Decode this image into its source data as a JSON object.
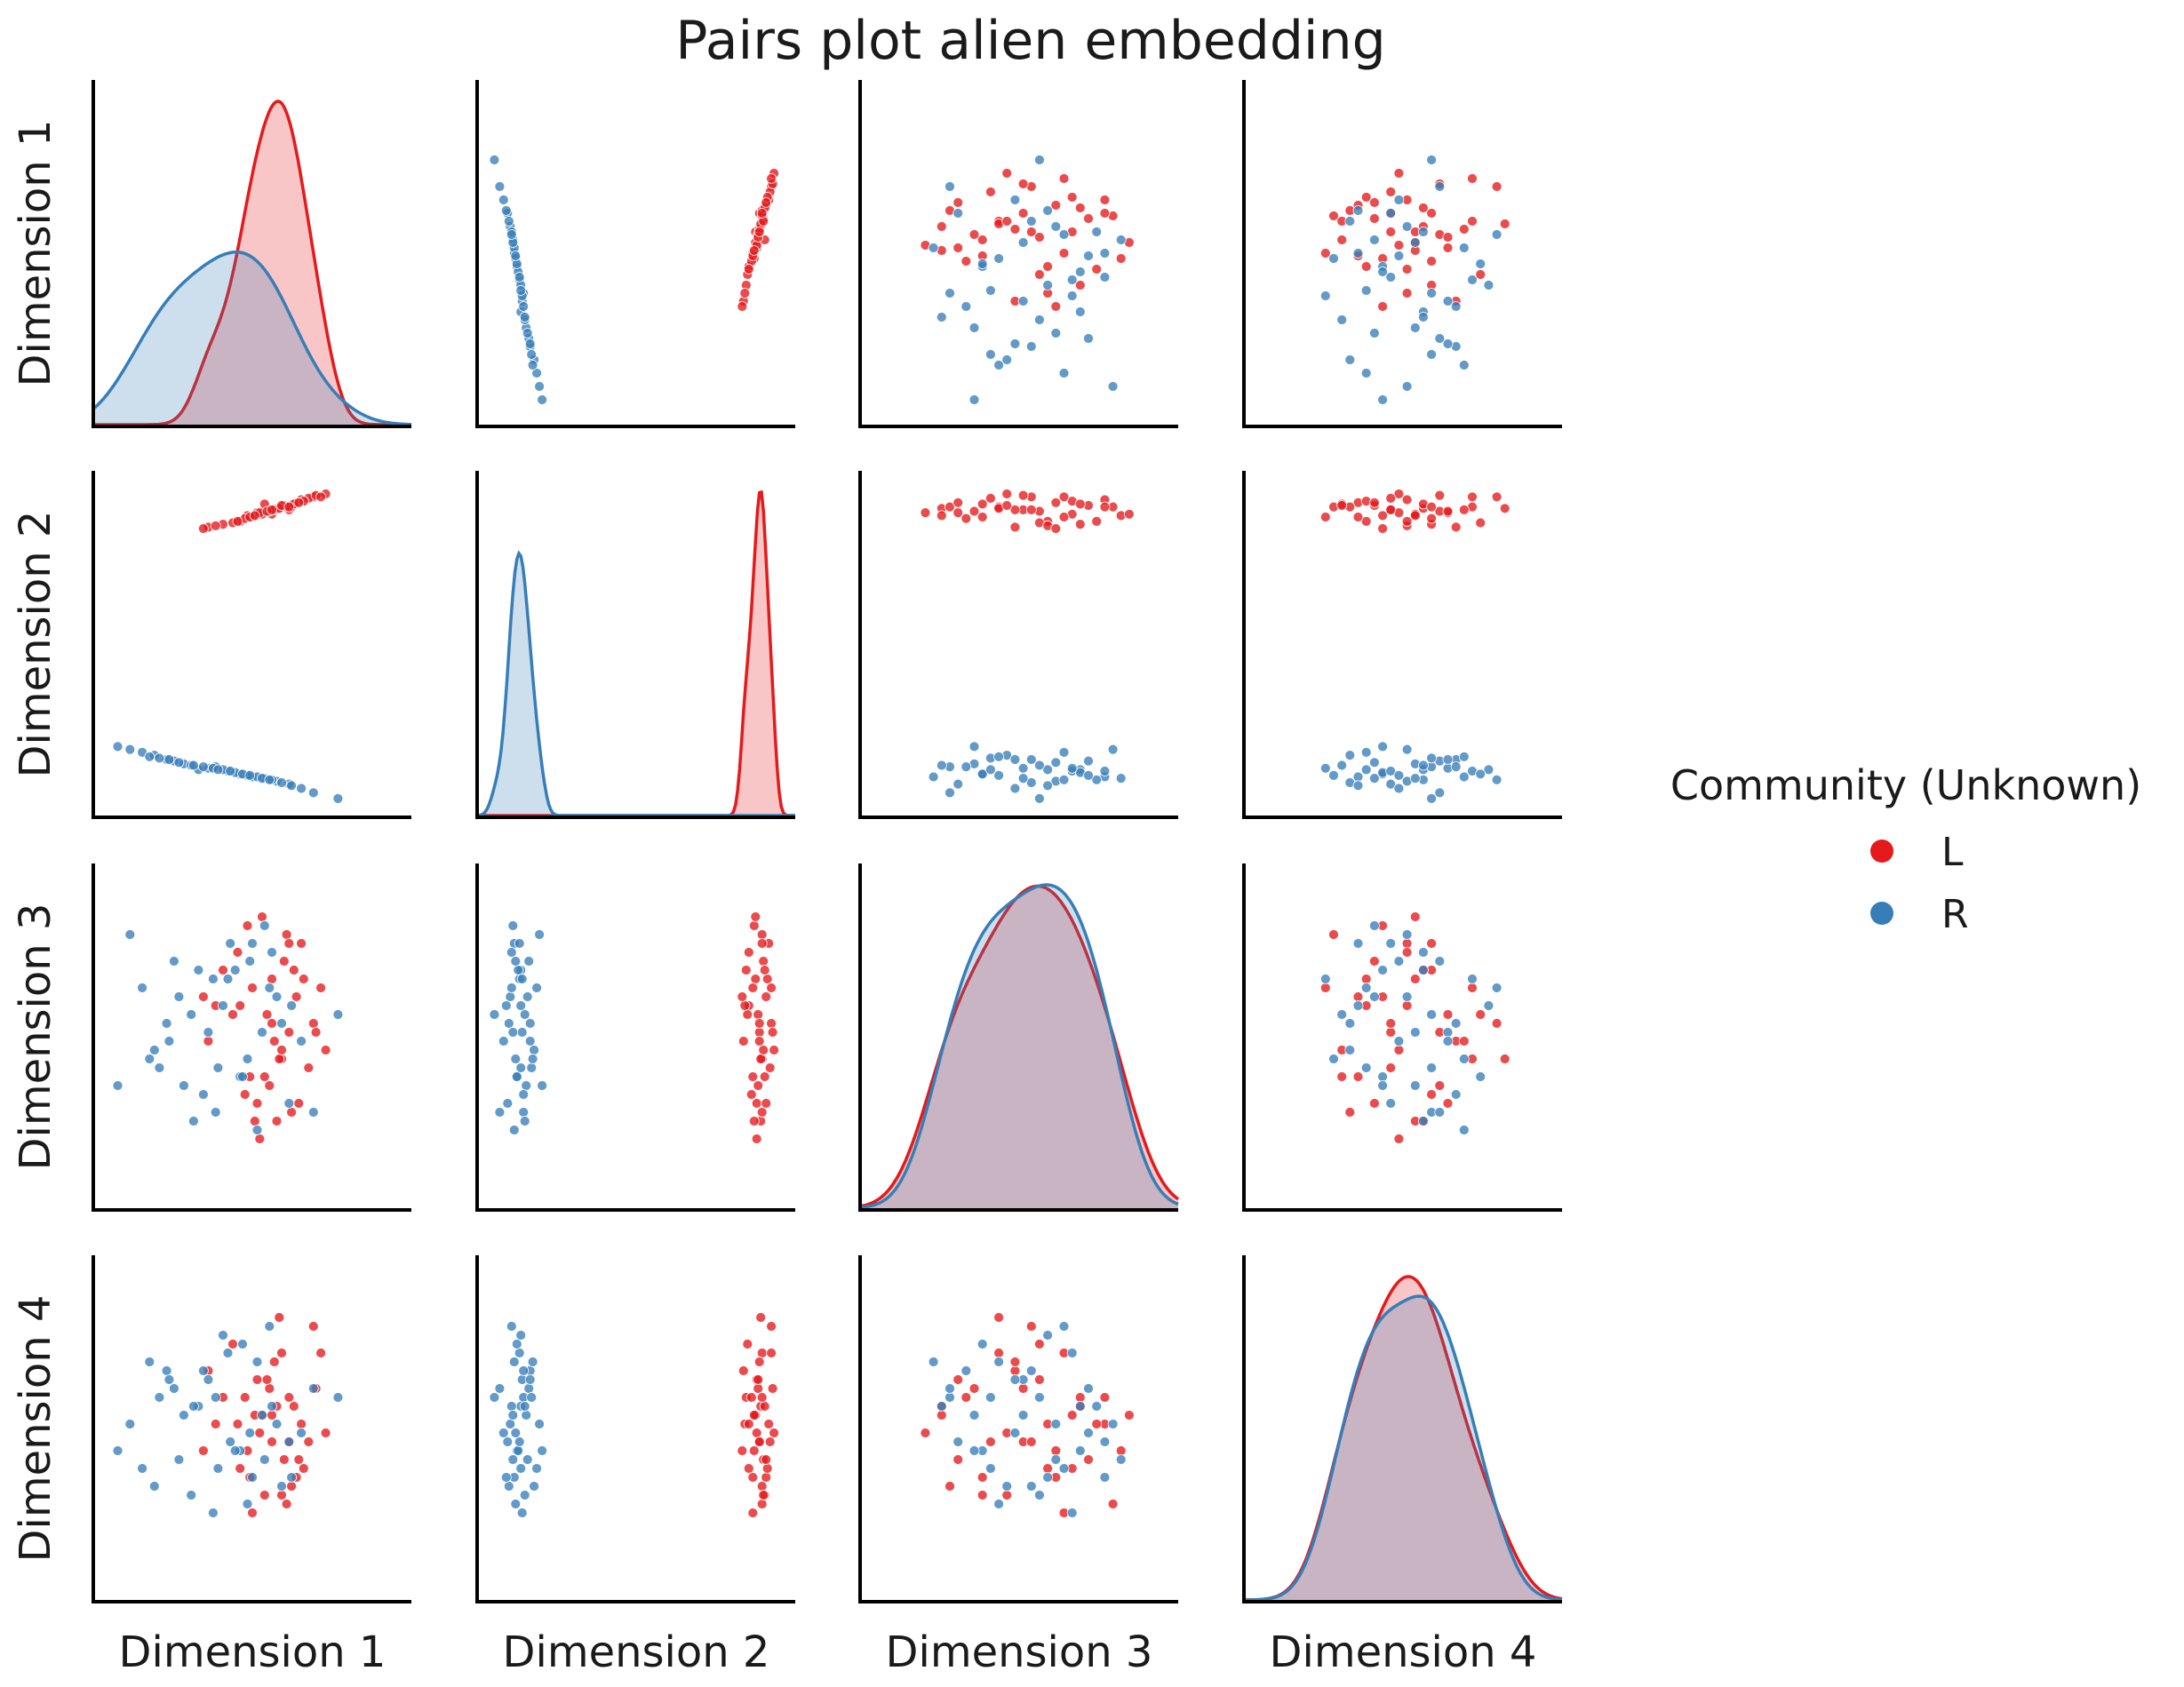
{
  "chart_data": {
    "type": "scatter",
    "subtype": "pairplot",
    "title": "Pairs plot alien embedding",
    "variables": [
      "Dimension 1",
      "Dimension 2",
      "Dimension 3",
      "Dimension 4"
    ],
    "diagonal": "kde",
    "ticks_shown": false,
    "grid": false,
    "legend": {
      "title": "Community (Unknown)",
      "placement": "right",
      "entries": [
        {
          "label": "L",
          "color": "#e41a1c"
        },
        {
          "label": "R",
          "color": "#377eb8"
        }
      ]
    },
    "axis_ranges": {
      "Dimension 1": [
        -0.55,
        0.75
      ],
      "Dimension 2": [
        -1.25,
        1.15
      ],
      "Dimension 3": [
        -0.95,
        1.0
      ],
      "Dimension 4": [
        -0.95,
        1.0
      ]
    },
    "series": [
      {
        "name": "L",
        "color": "#e41a1c",
        "points": [
          [
            0.18,
            0.85,
            0.35,
            0.1
          ],
          [
            0.22,
            0.9,
            -0.1,
            0.45
          ],
          [
            0.05,
            0.8,
            0.2,
            -0.2
          ],
          [
            0.3,
            0.95,
            0.55,
            0.05
          ],
          [
            0.12,
            0.86,
            -0.35,
            0.3
          ],
          [
            0.25,
            0.88,
            0.05,
            -0.05
          ],
          [
            -0.02,
            0.78,
            0.4,
            0.2
          ],
          [
            0.15,
            0.92,
            -0.2,
            -0.35
          ],
          [
            0.35,
            0.97,
            0.1,
            0.6
          ],
          [
            0.08,
            0.84,
            0.65,
            -0.1
          ],
          [
            0.2,
            0.89,
            -0.45,
            0.15
          ],
          [
            0.28,
            0.93,
            0.25,
            -0.25
          ],
          [
            -0.08,
            0.76,
            0.0,
            0.35
          ],
          [
            0.4,
            0.99,
            -0.05,
            0.0
          ],
          [
            0.1,
            0.83,
            0.3,
            -0.45
          ],
          [
            0.17,
            0.87,
            -0.25,
            0.25
          ],
          [
            0.23,
            0.91,
            0.45,
            -0.15
          ],
          [
            0.02,
            0.79,
            0.15,
            0.5
          ],
          [
            0.33,
            0.96,
            -0.15,
            -0.05
          ],
          [
            0.14,
            0.85,
            0.7,
            0.1
          ],
          [
            0.26,
            0.9,
            -0.4,
            -0.3
          ],
          [
            -0.05,
            0.77,
            0.2,
            0.05
          ],
          [
            0.19,
            0.88,
            0.0,
            0.4
          ],
          [
            0.31,
            0.94,
            0.35,
            -0.2
          ],
          [
            0.07,
            0.82,
            -0.3,
            0.2
          ],
          [
            0.24,
            0.9,
            0.6,
            -0.4
          ],
          [
            0.13,
            0.86,
            -0.55,
            0.0
          ],
          [
            0.36,
            0.98,
            0.05,
            0.25
          ],
          [
            -0.1,
            0.75,
            0.25,
            -0.1
          ],
          [
            0.21,
            0.89,
            -0.1,
            0.65
          ],
          [
            0.27,
            0.92,
            0.4,
            0.15
          ],
          [
            0.09,
            0.83,
            -0.2,
            -0.25
          ],
          [
            0.16,
            0.87,
            0.15,
            0.3
          ],
          [
            0.29,
            0.93,
            -0.35,
            -0.15
          ],
          [
            0.04,
            0.8,
            0.5,
            0.05
          ],
          [
            0.22,
            0.91,
            -0.05,
            -0.35
          ],
          [
            0.38,
            0.97,
            0.3,
            0.45
          ],
          [
            0.11,
            0.84,
            -0.45,
            0.1
          ],
          [
            0.18,
            0.88,
            0.1,
            -0.05
          ],
          [
            0.25,
            0.9,
            0.55,
            0.2
          ]
        ]
      },
      {
        "name": "R",
        "color": "#377eb8",
        "points": [
          [
            -0.12,
            -0.92,
            0.4,
            0.15
          ],
          [
            0.05,
            -0.95,
            -0.2,
            -0.1
          ],
          [
            -0.25,
            -0.85,
            0.1,
            0.35
          ],
          [
            0.1,
            -0.97,
            0.55,
            -0.25
          ],
          [
            -0.05,
            -0.9,
            -0.4,
            0.2
          ],
          [
            0.2,
            -1.0,
            0.25,
            0.05
          ],
          [
            -0.3,
            -0.82,
            -0.05,
            -0.3
          ],
          [
            0.0,
            -0.93,
            0.35,
            0.45
          ],
          [
            -0.18,
            -0.88,
            -0.25,
            0.1
          ],
          [
            0.15,
            -0.98,
            0.65,
            -0.15
          ],
          [
            -0.08,
            -0.91,
            0.05,
            0.3
          ],
          [
            0.25,
            -1.02,
            -0.35,
            -0.05
          ],
          [
            -0.22,
            -0.86,
            0.45,
            0.25
          ],
          [
            0.08,
            -0.96,
            -0.1,
            -0.4
          ],
          [
            -0.02,
            -0.92,
            0.2,
            0.55
          ],
          [
            0.3,
            -1.05,
            0.0,
            0.0
          ],
          [
            -0.35,
            -0.8,
            0.3,
            -0.2
          ],
          [
            0.12,
            -0.97,
            -0.5,
            0.4
          ],
          [
            -0.15,
            -0.89,
            0.15,
            -0.35
          ],
          [
            0.18,
            -0.99,
            0.5,
            0.15
          ],
          [
            -0.28,
            -0.84,
            -0.15,
            0.2
          ],
          [
            0.03,
            -0.94,
            0.4,
            -0.1
          ],
          [
            -0.1,
            -0.9,
            -0.3,
            0.35
          ],
          [
            0.22,
            -1.01,
            0.1,
            -0.3
          ],
          [
            -0.4,
            -0.78,
            0.6,
            0.05
          ],
          [
            0.06,
            -0.95,
            -0.2,
            0.5
          ],
          [
            -0.2,
            -0.87,
            0.25,
            -0.15
          ],
          [
            0.35,
            -1.08,
            -0.4,
            0.25
          ],
          [
            -0.06,
            -0.91,
            0.35,
            -0.45
          ],
          [
            0.14,
            -0.98,
            0.05,
            0.1
          ],
          [
            -0.32,
            -0.83,
            -0.1,
            0.4
          ],
          [
            0.01,
            -0.93,
            0.55,
            -0.05
          ],
          [
            -0.14,
            -0.89,
            -0.45,
            0.15
          ],
          [
            0.26,
            -1.03,
            0.2,
            -0.25
          ],
          [
            -0.24,
            -0.85,
            0.0,
            0.3
          ],
          [
            0.09,
            -0.96,
            0.45,
            0.0
          ],
          [
            -0.45,
            -0.76,
            -0.25,
            -0.1
          ],
          [
            0.17,
            -0.99,
            0.3,
            0.6
          ],
          [
            -0.04,
            -0.92,
            -0.15,
            -0.2
          ],
          [
            0.45,
            -1.12,
            0.15,
            0.2
          ]
        ]
      }
    ]
  }
}
